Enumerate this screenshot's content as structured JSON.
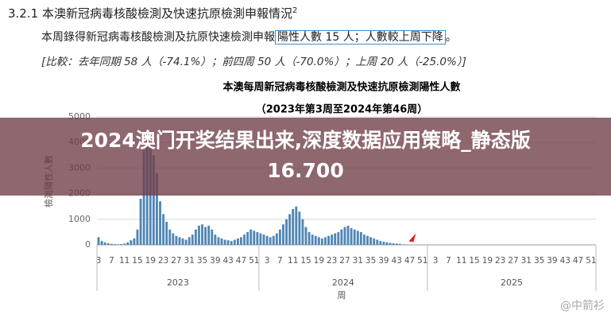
{
  "document": {
    "section_number": "3.2.1",
    "section_title": "本澳新冠病毒核酸檢測及快速抗原檢測申報情況",
    "section_note": "2",
    "summary": "本周錄得新冠病毒核酸檢測及抗原快速檢測申報",
    "summary_boxed": "陽性人數 15 人；人數較上周下降",
    "summary_end": "。",
    "comparison": "[比較：去年同期 58 人（-74.1%）；前四周 50 人（-70.0%）；上周 20 人（-25.0%）]"
  },
  "banner": {
    "line1": "2024澳门开奖结果出来,深度数据应用策略_静态版",
    "line2": "16.700"
  },
  "watermark": "@中箭衫",
  "chart_data": {
    "type": "bar",
    "title": "本澳每周新冠病毒核酸檢測及快速抗原檢測陽性人數",
    "subtitle": "（2023年第3周至2024年第46周）",
    "y_label": "檢測陽性人數",
    "x_label": "周",
    "color": "#4f86b5",
    "grid": true,
    "ylim": [
      0,
      5000
    ],
    "yticks": [
      0,
      1000,
      2000,
      3000,
      4000,
      5000
    ],
    "x_groups": [
      {
        "label": "2023",
        "size": 50
      },
      {
        "label": "2024",
        "size": 52
      },
      {
        "label": "2025",
        "size": 52
      }
    ],
    "categories": [
      "3",
      null,
      null,
      null,
      "7",
      null,
      null,
      null,
      "11",
      null,
      null,
      null,
      "15",
      null,
      null,
      null,
      "19",
      null,
      null,
      null,
      "23",
      null,
      null,
      null,
      "27",
      null,
      null,
      null,
      "31",
      null,
      null,
      null,
      "35",
      null,
      null,
      null,
      "39",
      null,
      null,
      null,
      "43",
      null,
      null,
      null,
      "47",
      null,
      null,
      null,
      "51",
      null,
      null,
      null,
      "3",
      null,
      null,
      null,
      "7",
      null,
      null,
      null,
      "11",
      null,
      null,
      null,
      "15",
      null,
      null,
      null,
      "19",
      null,
      null,
      null,
      "23",
      null,
      null,
      null,
      "27",
      null,
      null,
      null,
      "31",
      null,
      null,
      null,
      "35",
      null,
      null,
      null,
      "39",
      null,
      null,
      null,
      "43",
      null,
      null,
      null,
      "47",
      null,
      null,
      null,
      "51",
      null,
      null,
      null,
      "3",
      null,
      null,
      null,
      "7",
      null,
      null,
      null,
      "11",
      null,
      null,
      null,
      "15",
      null,
      null,
      null,
      "19",
      null,
      null,
      null,
      "23",
      null,
      null,
      null,
      "27",
      null,
      null,
      null,
      "31",
      null,
      null,
      null,
      "35",
      null,
      null,
      null,
      "39",
      null,
      null,
      null,
      "43",
      null,
      null,
      null,
      "47",
      null,
      null,
      null,
      "51",
      null
    ],
    "values": [
      300,
      150,
      100,
      60,
      40,
      30,
      20,
      30,
      50,
      100,
      180,
      250,
      600,
      1800,
      3700,
      4400,
      4000,
      3500,
      2800,
      1700,
      1200,
      900,
      600,
      450,
      350,
      300,
      250,
      200,
      300,
      400,
      600,
      750,
      800,
      700,
      750,
      600,
      400,
      300,
      250,
      200,
      180,
      150,
      200,
      250,
      300,
      400,
      500,
      600,
      550,
      500,
      450,
      400,
      350,
      300,
      350,
      450,
      600,
      800,
      1000,
      1200,
      1400,
      1500,
      1300,
      1000,
      700,
      500,
      400,
      350,
      300,
      250,
      300,
      350,
      400,
      450,
      500,
      600,
      700,
      750,
      650,
      600,
      550,
      500,
      400,
      350,
      300,
      250,
      200,
      150,
      120,
      100,
      80,
      60,
      50,
      40,
      20,
      15,
      null,
      null,
      null,
      null,
      null,
      null,
      null,
      null,
      null,
      null,
      null,
      null,
      null,
      null,
      null,
      null,
      null,
      null,
      null,
      null,
      null,
      null,
      null,
      null,
      null,
      null,
      null,
      null,
      null,
      null,
      null,
      null,
      null,
      null,
      null,
      null,
      null,
      null,
      null,
      null,
      null,
      null,
      null,
      null,
      null,
      null,
      null,
      null,
      null,
      null,
      null,
      null,
      null,
      null,
      null,
      null,
      null,
      null
    ]
  }
}
